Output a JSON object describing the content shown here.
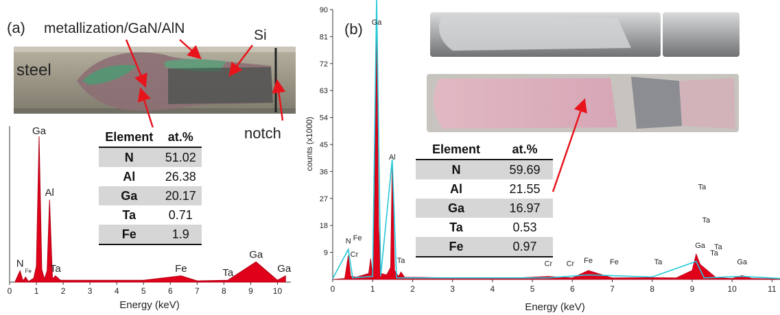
{
  "panel_a": {
    "label": "(a)",
    "photo_labels": {
      "steel": "steel",
      "metallization": "metallization/GaN/AlN",
      "si": "Si",
      "notch": "notch"
    },
    "table": {
      "headers": [
        "Element",
        "at.%"
      ],
      "rows": [
        {
          "element": "N",
          "value": "51.02"
        },
        {
          "element": "Al",
          "value": "26.38"
        },
        {
          "element": "Ga",
          "value": "20.17"
        },
        {
          "element": "Ta",
          "value": "0.71"
        },
        {
          "element": "Fe",
          "value": "1.9"
        }
      ]
    }
  },
  "panel_b": {
    "label": "(b)",
    "table": {
      "headers": [
        "Element",
        "at.%"
      ],
      "rows": [
        {
          "element": "N",
          "value": "59.69"
        },
        {
          "element": "Al",
          "value": "21.55"
        },
        {
          "element": "Ga",
          "value": "16.97"
        },
        {
          "element": "Ta",
          "value": "0.53"
        },
        {
          "element": "Fe",
          "value": "0.97"
        }
      ]
    }
  },
  "colors": {
    "spectrum_fill": "#e0001a",
    "spectrum_overlay": "#22c8d8",
    "arrow": "#e8141c",
    "table_shade": "#d6d6d6"
  },
  "chart_data": [
    {
      "type": "area",
      "title": "",
      "xlabel": "Energy (keV)",
      "ylabel": "",
      "xlim": [
        0,
        10.5
      ],
      "xticks": [
        0,
        1,
        2,
        3,
        4,
        5,
        6,
        7,
        8,
        9,
        10
      ],
      "y_axis_labels": false,
      "series": [
        {
          "x": [
            0.2,
            0.39,
            0.5,
            0.6,
            0.7,
            0.9,
            1.0,
            1.1,
            1.2,
            1.3,
            1.4,
            1.49,
            1.6,
            1.71,
            1.9,
            2.5,
            5.0,
            6.4,
            7.0,
            8.15,
            9.2,
            10.0,
            10.3
          ],
          "y": [
            0,
            18,
            2,
            8,
            1,
            6,
            25,
            230,
            20,
            5,
            18,
            130,
            5,
            10,
            3,
            3,
            3,
            10,
            2,
            3,
            32,
            3,
            10
          ]
        }
      ],
      "annotations": [
        {
          "text": "N",
          "x": 0.39
        },
        {
          "text": "Fe",
          "x": 0.7
        },
        {
          "text": "Ga",
          "x": 1.1
        },
        {
          "text": "Al",
          "x": 1.49
        },
        {
          "text": "Ta",
          "x": 1.71
        },
        {
          "text": "Fe",
          "x": 6.4
        },
        {
          "text": "Ta",
          "x": 8.15
        },
        {
          "text": "Ga",
          "x": 9.2
        },
        {
          "text": "Ga",
          "x": 10.25
        }
      ]
    },
    {
      "type": "area",
      "title": "",
      "xlabel": "Energy (keV)",
      "ylabel": "counts (x1000)",
      "xlim": [
        0,
        11.2
      ],
      "ylim": [
        0,
        90
      ],
      "xticks": [
        0,
        1,
        2,
        3,
        4,
        5,
        6,
        7,
        8,
        9,
        10,
        11
      ],
      "yticks": [
        9,
        18,
        27,
        36,
        45,
        54,
        63,
        72,
        81,
        90
      ],
      "series": [
        {
          "name": "",
          "x": [
            0,
            0.3,
            0.39,
            0.45,
            0.6,
            0.9,
            0.95,
            1.0,
            1.05,
            1.1,
            1.15,
            1.2,
            1.35,
            1.45,
            1.49,
            1.55,
            1.65,
            1.71,
            1.8,
            2.2,
            3.0,
            4.5,
            5.4,
            6.0,
            6.4,
            7.0,
            8.0,
            8.6,
            9.0,
            9.1,
            9.2,
            9.6,
            10.0,
            10.25,
            10.5,
            11.0,
            11.2
          ],
          "y": [
            0,
            0.3,
            8,
            1,
            0.8,
            2,
            7,
            1,
            28,
            86,
            18,
            2,
            1.5,
            4,
            39,
            3,
            1,
            2.5,
            0.7,
            0.7,
            0.5,
            0.4,
            1,
            0.5,
            3,
            0.5,
            0.6,
            0.5,
            3,
            8.5,
            5,
            0.6,
            0.3,
            1.3,
            0.3,
            0.2,
            0.2
          ]
        },
        {
          "name": "",
          "x": [
            0,
            0.39,
            0.5,
            1.0,
            1.1,
            1.2,
            1.49,
            1.6,
            2.0,
            5.4,
            6.4,
            8.0,
            9.1,
            9.3,
            10.25,
            11.2
          ],
          "y": [
            0.3,
            10,
            0.5,
            1,
            94,
            1,
            40,
            0.5,
            0.5,
            0.5,
            1.5,
            0.8,
            6,
            0.5,
            1,
            0.3
          ]
        }
      ],
      "annotations": [
        {
          "text": "N",
          "x": 0.39
        },
        {
          "text": "Fe",
          "x": 0.7
        },
        {
          "text": "Cr",
          "x": 0.58
        },
        {
          "text": "Ga",
          "x": 1.1
        },
        {
          "text": "Al",
          "x": 1.49
        },
        {
          "text": "Ta",
          "x": 1.71
        },
        {
          "text": "Cr",
          "x": 5.4
        },
        {
          "text": "Cr",
          "x": 5.95
        },
        {
          "text": "Fe",
          "x": 6.4
        },
        {
          "text": "Fe",
          "x": 7.05
        },
        {
          "text": "Ta",
          "x": 8.15
        },
        {
          "text": "Ga",
          "x": 9.2
        },
        {
          "text": "Ta",
          "x": 9.25
        },
        {
          "text": "Ta",
          "x": 9.6
        },
        {
          "text": "Ta",
          "x": 9.35
        },
        {
          "text": "Ta",
          "x": 9.35
        },
        {
          "text": "Ga",
          "x": 10.25
        }
      ]
    }
  ]
}
